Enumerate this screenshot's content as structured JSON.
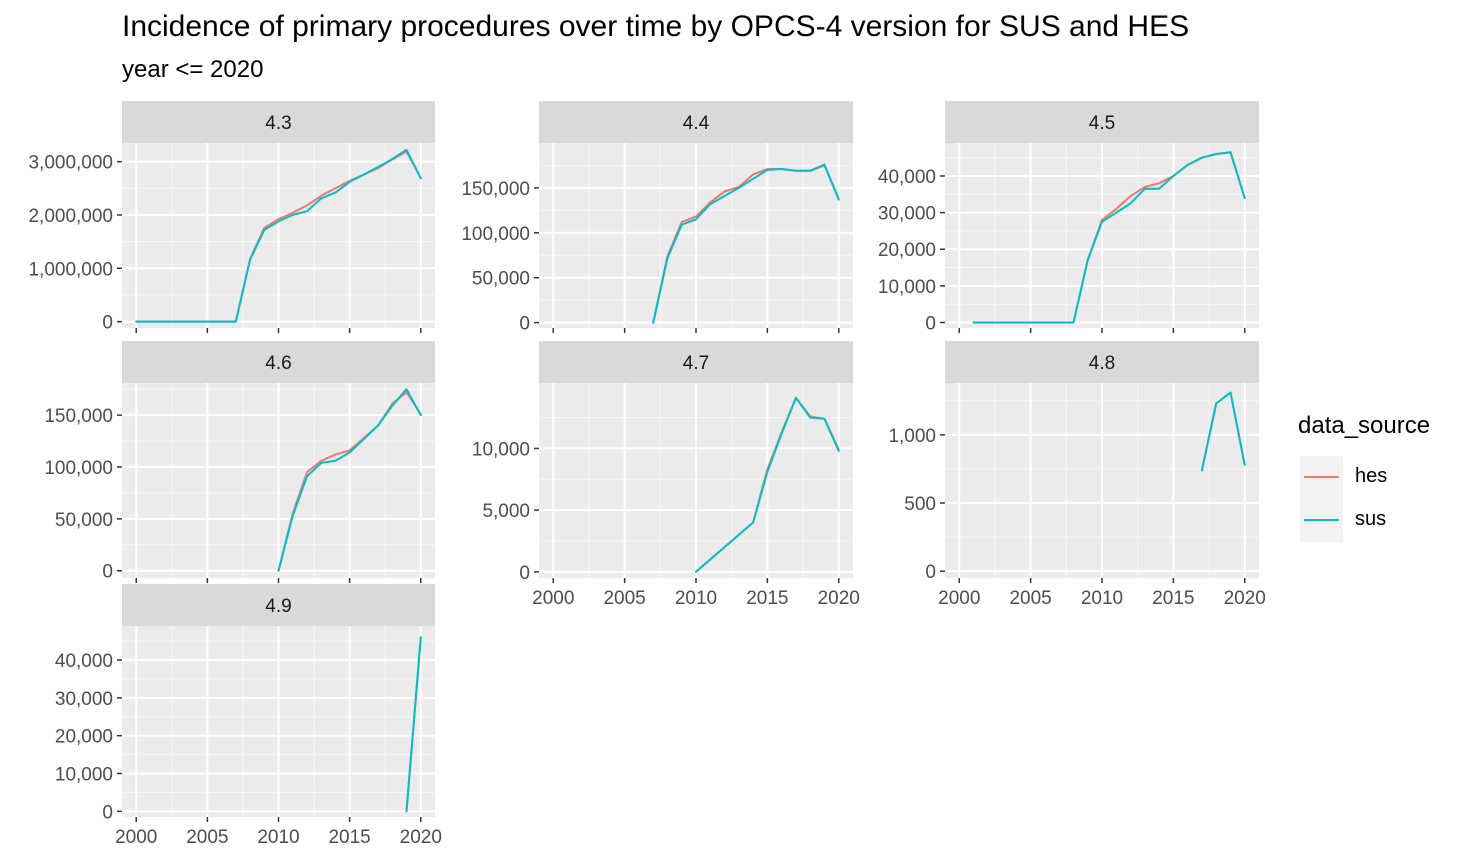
{
  "title": "Incidence of primary procedures over time by OPCS-4 version for SUS and HES",
  "subtitle": "year <= 2020",
  "legend": {
    "title": "data_source",
    "items": [
      {
        "label": "hes",
        "color": "#F8766D"
      },
      {
        "label": "sus",
        "color": "#00BFC4"
      }
    ]
  },
  "chart_data": {
    "type": "line",
    "facet_by": "OPCS-4 version",
    "x_ticks": [
      2000,
      2005,
      2010,
      2015,
      2020
    ],
    "xlim": [
      1999,
      2021
    ],
    "series_names": [
      "hes",
      "sus"
    ],
    "panels": [
      {
        "label": "4.3",
        "ylim": [
          -120000,
          3350000
        ],
        "y_ticks": [
          0,
          1000000,
          2000000,
          3000000
        ],
        "y_tick_labels": [
          "0",
          "1,000,000",
          "2,000,000",
          "3,000,000"
        ],
        "x": [
          2000,
          2001,
          2002,
          2003,
          2004,
          2005,
          2006,
          2007,
          2008,
          2009,
          2010,
          2011,
          2012,
          2013,
          2014,
          2015,
          2016,
          2017,
          2018,
          2019,
          2020
        ],
        "series": [
          {
            "name": "hes",
            "values": [
              0,
              0,
              0,
              0,
              0,
              0,
              0,
              0,
              1170000,
              1760000,
              1920000,
              2040000,
              2180000,
              2360000,
              2500000,
              2640000,
              2760000,
              2880000,
              3040000,
              3190000,
              2690000
            ]
          },
          {
            "name": "sus",
            "values": [
              0,
              0,
              0,
              0,
              0,
              0,
              0,
              0,
              1160000,
              1720000,
              1880000,
              2000000,
              2070000,
              2310000,
              2420000,
              2620000,
              2760000,
              2900000,
              3050000,
              3220000,
              2690000
            ]
          }
        ]
      },
      {
        "label": "4.4",
        "ylim": [
          -6000,
          200000
        ],
        "y_ticks": [
          0,
          50000,
          100000,
          150000
        ],
        "y_tick_labels": [
          "0",
          "50,000",
          "100,000",
          "150,000"
        ],
        "x": [
          2007,
          2008,
          2009,
          2010,
          2011,
          2012,
          2013,
          2014,
          2015,
          2016,
          2017,
          2018,
          2019,
          2020
        ],
        "series": [
          {
            "name": "hes",
            "values": [
              0,
              74000,
              112000,
              118000,
              134000,
              146000,
              151000,
              165000,
              171000,
              171000,
              169000,
              169000,
              175000,
              138000
            ]
          },
          {
            "name": "sus",
            "values": [
              0,
              72000,
              109000,
              115000,
              132000,
              141000,
              150000,
              160000,
              170000,
              171000,
              169000,
              169000,
              176000,
              137000
            ]
          }
        ]
      },
      {
        "label": "4.5",
        "ylim": [
          -1500,
          49000
        ],
        "y_ticks": [
          0,
          10000,
          20000,
          30000,
          40000
        ],
        "y_tick_labels": [
          "0",
          "10,000",
          "20,000",
          "30,000",
          "40,000"
        ],
        "x": [
          2001,
          2002,
          2003,
          2004,
          2005,
          2006,
          2007,
          2008,
          2009,
          2010,
          2011,
          2012,
          2013,
          2014,
          2015,
          2016,
          2017,
          2018,
          2019,
          2020
        ],
        "series": [
          {
            "name": "hes",
            "values": [
              0,
              0,
              0,
              0,
              0,
              0,
              0,
              0,
              17000,
              28000,
              31000,
              34500,
              37000,
              38000,
              40000,
              43000,
              45000,
              46000,
              46500,
              34000
            ]
          },
          {
            "name": "sus",
            "values": [
              0,
              0,
              0,
              0,
              0,
              0,
              0,
              0,
              17000,
              27500,
              30000,
              32500,
              36500,
              36500,
              40000,
              43000,
              45000,
              46000,
              46500,
              34000
            ]
          }
        ]
      },
      {
        "label": "4.6",
        "ylim": [
          -7000,
          181000
        ],
        "y_ticks": [
          0,
          50000,
          100000,
          150000
        ],
        "y_tick_labels": [
          "0",
          "50,000",
          "100,000",
          "150,000"
        ],
        "x": [
          2010,
          2011,
          2012,
          2013,
          2014,
          2015,
          2016,
          2017,
          2018,
          2019,
          2020
        ],
        "series": [
          {
            "name": "hes",
            "values": [
              0,
              55000,
              95000,
              106000,
              112000,
              116000,
              128000,
              140000,
              161000,
              172000,
              151000
            ]
          },
          {
            "name": "sus",
            "values": [
              0,
              53000,
              91000,
              104000,
              106000,
              114000,
              127000,
              140000,
              159000,
              175000,
              150000
            ]
          }
        ]
      },
      {
        "label": "4.7",
        "ylim": [
          -500,
          15300
        ],
        "y_ticks": [
          0,
          5000,
          10000
        ],
        "y_tick_labels": [
          "0",
          "5,000",
          "10,000"
        ],
        "x": [
          2010,
          2014,
          2015,
          2016,
          2017,
          2018,
          2019,
          2020
        ],
        "series": [
          {
            "name": "hes",
            "values": [
              0,
              4000,
              8300,
              11300,
              14100,
              12600,
              12400,
              9900
            ]
          },
          {
            "name": "sus",
            "values": [
              0,
              4000,
              8100,
              11200,
              14100,
              12500,
              12400,
              9800
            ]
          }
        ]
      },
      {
        "label": "4.8",
        "ylim": [
          -50,
          1380
        ],
        "y_ticks": [
          0,
          500,
          1000
        ],
        "y_tick_labels": [
          "0",
          "500",
          "1,000"
        ],
        "x": [
          2017,
          2018,
          2019,
          2020
        ],
        "series": [
          {
            "name": "hes",
            "values": [
              740,
              1230,
              1310,
              780
            ]
          },
          {
            "name": "sus",
            "values": [
              740,
              1230,
              1310,
              780
            ]
          }
        ]
      },
      {
        "label": "4.9",
        "ylim": [
          -1500,
          49000
        ],
        "y_ticks": [
          0,
          10000,
          20000,
          30000,
          40000
        ],
        "y_tick_labels": [
          "0",
          "10,000",
          "20,000",
          "30,000",
          "40,000"
        ],
        "x": [
          2019,
          2020
        ],
        "series": [
          {
            "name": "hes",
            "values": [
              0,
              46000
            ]
          },
          {
            "name": "sus",
            "values": [
              0,
              46000
            ]
          }
        ]
      }
    ]
  }
}
